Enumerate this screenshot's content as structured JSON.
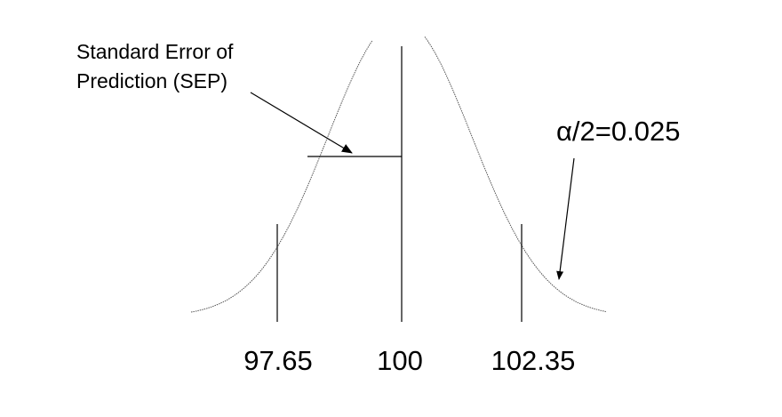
{
  "diagram": {
    "annotation_sep": {
      "line1": "Standard Error of",
      "line2": "Prediction (SEP)"
    },
    "annotation_alpha": "α/2=0.025",
    "ticks": {
      "left": "97.65",
      "center": "100",
      "right": "102.35"
    },
    "curve": {
      "type": "normal-distribution",
      "line_style": "dotted",
      "color": "#555555"
    },
    "colors": {
      "line": "#000000",
      "curve": "#555555",
      "background": "#ffffff"
    }
  }
}
